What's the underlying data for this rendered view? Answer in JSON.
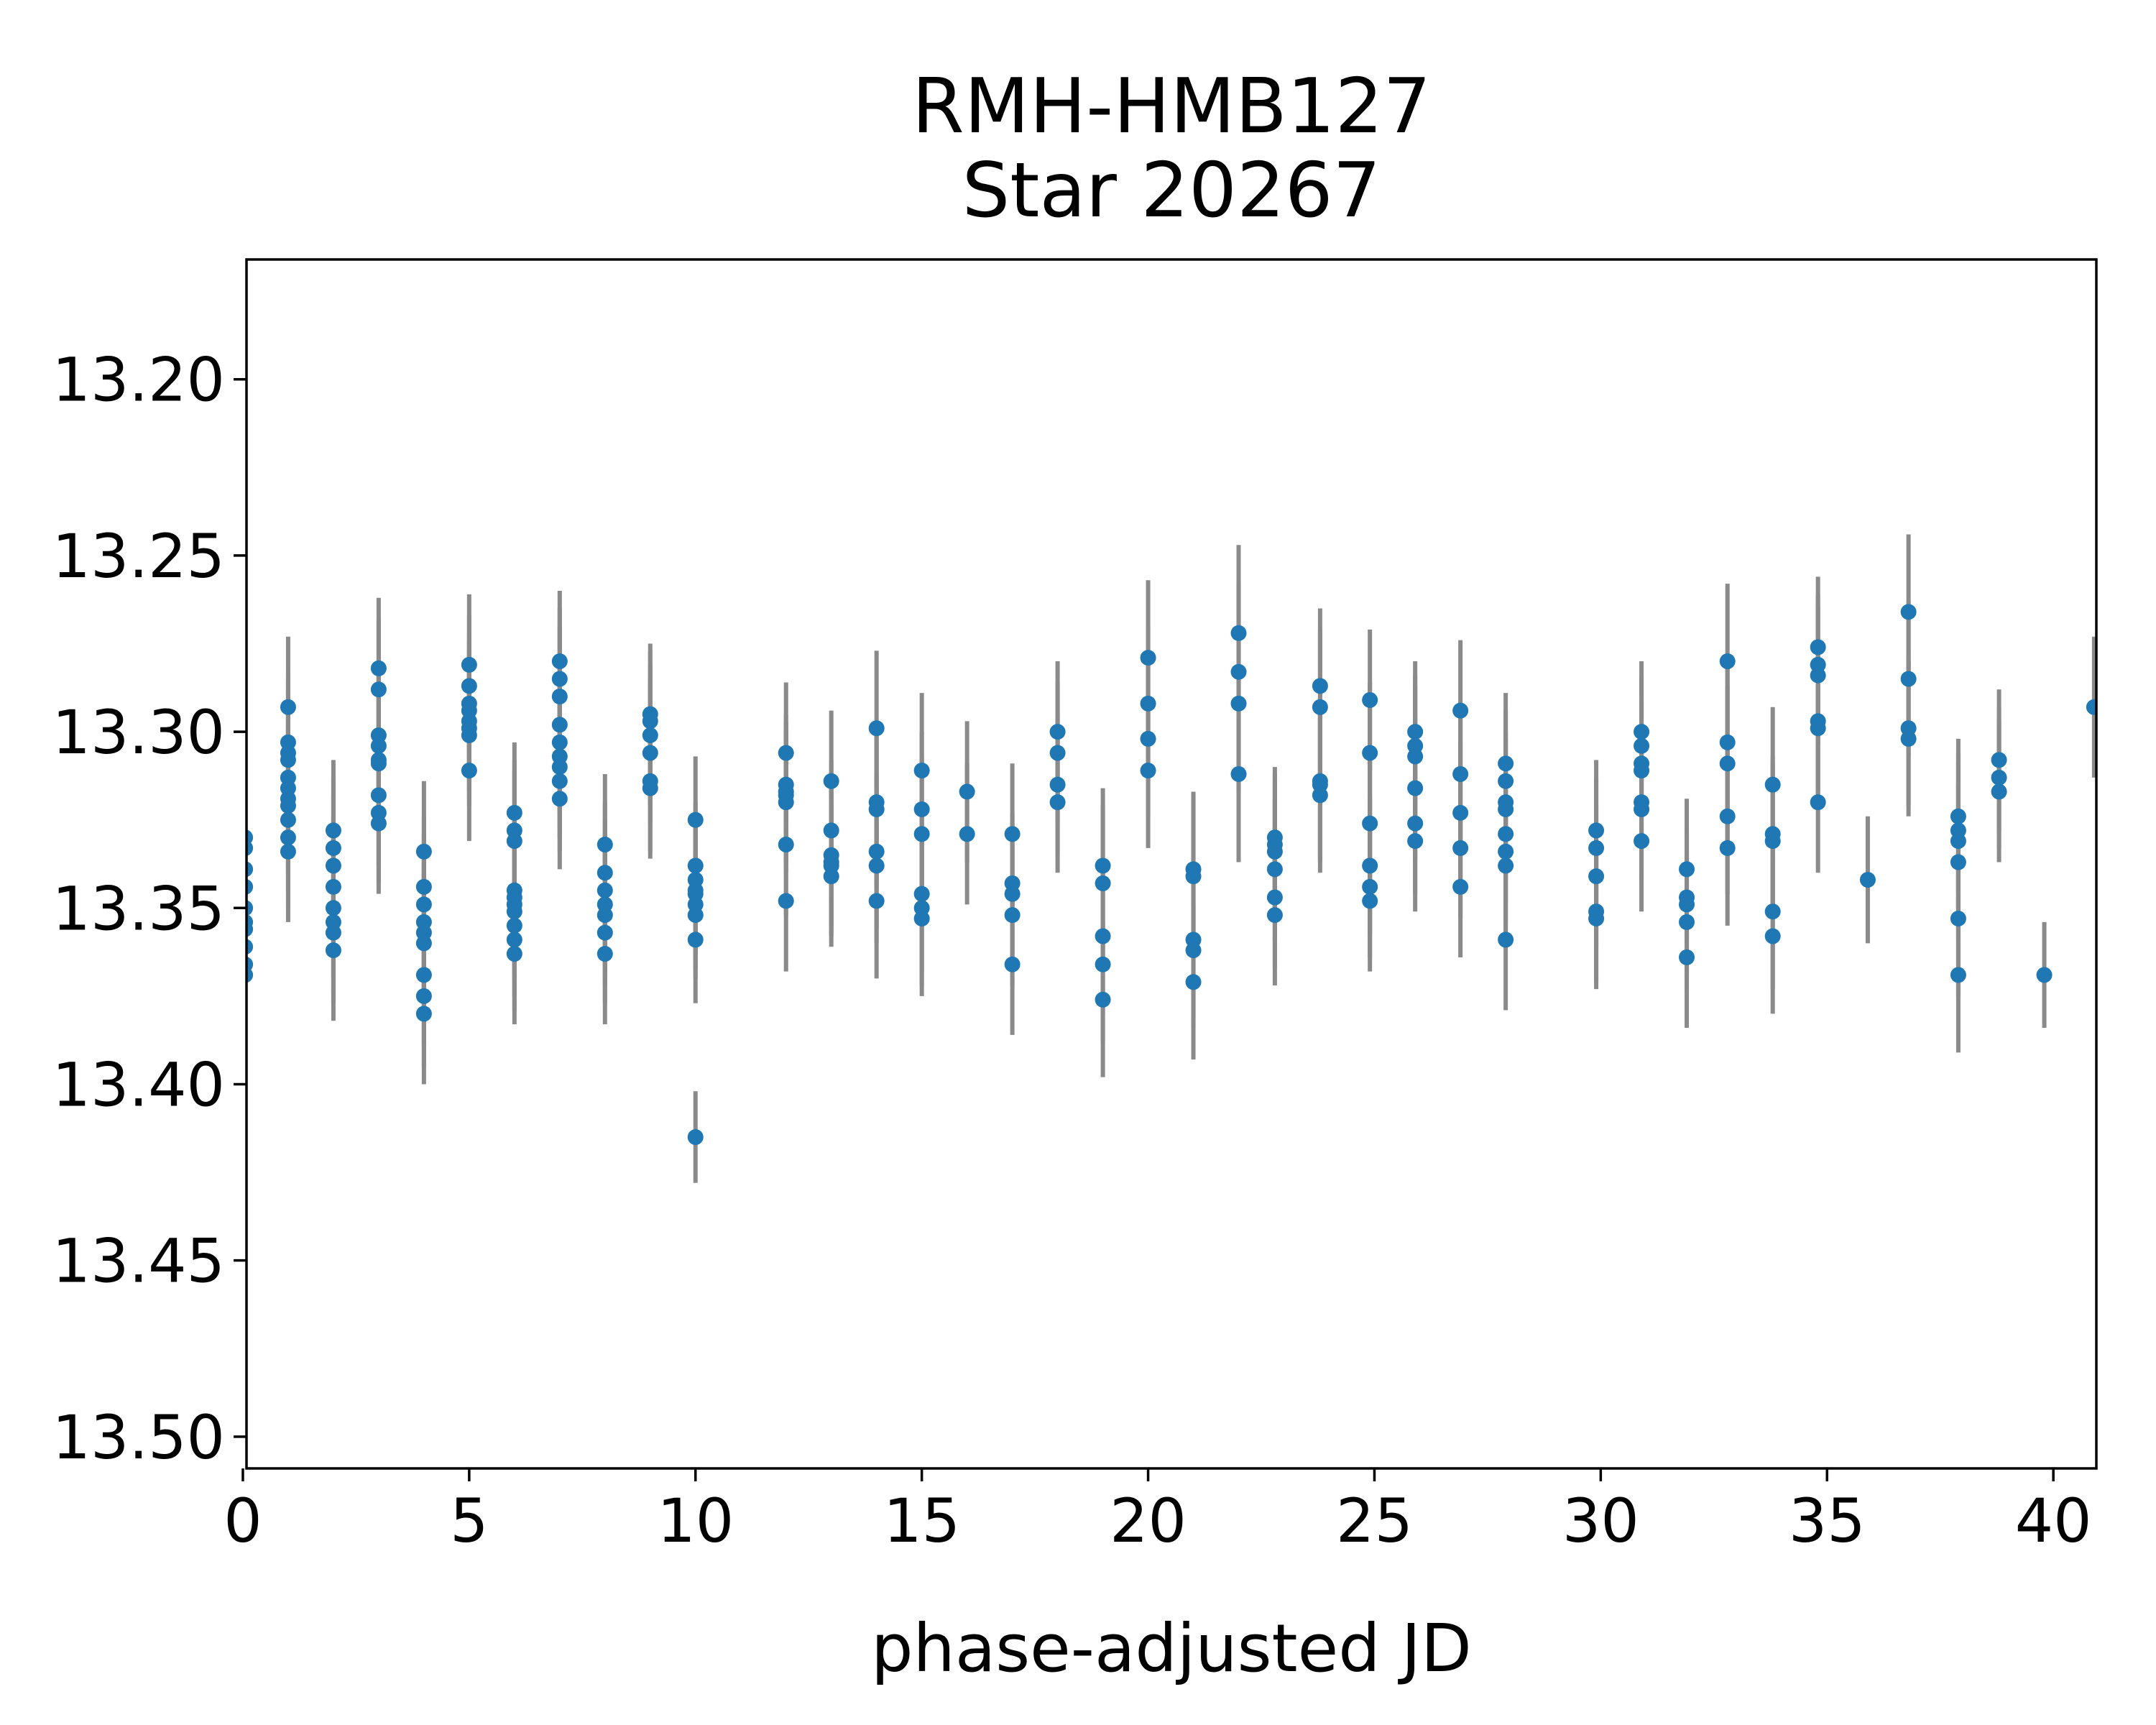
{
  "figure": {
    "title_line1": "RMH-HMB127",
    "title_line2": "Star 20267",
    "xlabel": "phase-adjusted JD",
    "background_color": "#ffffff",
    "text_color": "#000000",
    "spine_color": "#000000"
  },
  "chart_data": {
    "type": "scatter",
    "title": "RMH-HMB127\nStar 20267",
    "xlabel": "phase-adjusted JD",
    "ylabel": "",
    "y_axis_is_magnitude_inverted": true,
    "grid": false,
    "legend": "none",
    "marker_color": "#1f77b4",
    "errorbar_color": "#8a8a8a",
    "xlim": [
      0.08,
      40.95
    ],
    "ylim_top_value": 13.166,
    "ylim_bottom_value": 13.509,
    "xticks": [
      0,
      5,
      10,
      15,
      20,
      25,
      30,
      35,
      40
    ],
    "yticks": [
      {
        "value": 13.2,
        "label": "13.20"
      },
      {
        "value": 13.25,
        "label": "13.25"
      },
      {
        "value": 13.3,
        "label": "13.30"
      },
      {
        "value": 13.35,
        "label": "13.35"
      },
      {
        "value": 13.4,
        "label": "13.40"
      },
      {
        "value": 13.45,
        "label": "13.45"
      },
      {
        "value": 13.5,
        "label": "13.50"
      }
    ],
    "clusters": [
      {
        "x": 0.05,
        "err": 0.02,
        "mags": [
          13.33,
          13.333,
          13.339,
          13.344,
          13.35,
          13.354,
          13.356,
          13.361,
          13.366,
          13.369
        ]
      },
      {
        "x": 1.0,
        "err": 0.02,
        "mags": [
          13.293,
          13.303,
          13.306,
          13.308,
          13.313,
          13.316,
          13.319,
          13.321,
          13.325,
          13.33,
          13.334
        ]
      },
      {
        "x": 2.0,
        "err": 0.02,
        "mags": [
          13.328,
          13.333,
          13.338,
          13.344,
          13.35,
          13.354,
          13.357,
          13.362
        ]
      },
      {
        "x": 3.0,
        "err": 0.02,
        "mags": [
          13.282,
          13.288,
          13.301,
          13.304,
          13.308,
          13.309,
          13.318,
          13.323,
          13.326
        ]
      },
      {
        "x": 4.0,
        "err": 0.02,
        "mags": [
          13.334,
          13.344,
          13.349,
          13.354,
          13.357,
          13.36,
          13.369,
          13.375,
          13.38
        ]
      },
      {
        "x": 5.0,
        "err": 0.02,
        "mags": [
          13.281,
          13.287,
          13.292,
          13.294,
          13.297,
          13.299,
          13.301,
          13.311
        ]
      },
      {
        "x": 6.0,
        "err": 0.02,
        "mags": [
          13.323,
          13.328,
          13.331,
          13.345,
          13.347,
          13.349,
          13.351,
          13.355,
          13.359,
          13.363
        ]
      },
      {
        "x": 7.0,
        "err": 0.02,
        "mags": [
          13.28,
          13.285,
          13.29,
          13.298,
          13.303,
          13.307,
          13.31,
          13.314,
          13.319
        ]
      },
      {
        "x": 8.0,
        "err": 0.02,
        "mags": [
          13.332,
          13.34,
          13.345,
          13.349,
          13.352,
          13.357,
          13.363
        ]
      },
      {
        "x": 9.0,
        "err": 0.02,
        "mags": [
          13.295,
          13.297,
          13.301,
          13.306,
          13.314,
          13.316
        ]
      },
      {
        "x": 10.0,
        "err": 0.018,
        "mags": [
          13.325,
          13.338,
          13.342,
          13.345,
          13.346,
          13.349,
          13.352,
          13.359
        ]
      },
      {
        "x": 10.0,
        "err": 0.013,
        "mags": [
          13.415
        ]
      },
      {
        "x": 12.0,
        "err": 0.02,
        "mags": [
          13.306,
          13.315,
          13.317,
          13.318,
          13.32,
          13.332,
          13.348
        ]
      },
      {
        "x": 13.0,
        "err": 0.02,
        "mags": [
          13.314,
          13.328,
          13.335,
          13.337,
          13.338,
          13.341
        ]
      },
      {
        "x": 14.0,
        "err": 0.022,
        "mags": [
          13.299,
          13.32,
          13.322,
          13.334,
          13.338,
          13.348
        ]
      },
      {
        "x": 15.0,
        "err": 0.022,
        "mags": [
          13.311,
          13.322,
          13.329,
          13.346,
          13.35,
          13.353
        ]
      },
      {
        "x": 16.0,
        "err": 0.02,
        "mags": [
          13.317,
          13.329
        ]
      },
      {
        "x": 17.0,
        "err": 0.02,
        "mags": [
          13.329,
          13.343,
          13.346,
          13.352,
          13.366
        ]
      },
      {
        "x": 18.0,
        "err": 0.02,
        "mags": [
          13.3,
          13.306,
          13.315,
          13.32
        ]
      },
      {
        "x": 19.0,
        "err": 0.022,
        "mags": [
          13.338,
          13.343,
          13.358,
          13.366,
          13.376
        ]
      },
      {
        "x": 20.0,
        "err": 0.022,
        "mags": [
          13.279,
          13.292,
          13.302,
          13.311
        ]
      },
      {
        "x": 21.0,
        "err": 0.022,
        "mags": [
          13.339,
          13.341,
          13.359,
          13.362,
          13.371
        ]
      },
      {
        "x": 22.0,
        "err": 0.025,
        "mags": [
          13.272,
          13.283,
          13.292,
          13.312
        ]
      },
      {
        "x": 22.8,
        "err": 0.02,
        "mags": [
          13.33,
          13.332,
          13.334,
          13.339,
          13.347,
          13.352
        ]
      },
      {
        "x": 23.8,
        "err": 0.022,
        "mags": [
          13.287,
          13.293,
          13.314,
          13.315,
          13.318
        ]
      },
      {
        "x": 24.9,
        "err": 0.02,
        "mags": [
          13.291,
          13.306,
          13.326,
          13.338,
          13.344,
          13.348
        ]
      },
      {
        "x": 25.9,
        "err": 0.02,
        "mags": [
          13.3,
          13.304,
          13.307,
          13.316,
          13.326,
          13.331
        ]
      },
      {
        "x": 26.9,
        "err": 0.02,
        "mags": [
          13.294,
          13.312,
          13.323,
          13.333,
          13.344
        ]
      },
      {
        "x": 27.9,
        "err": 0.02,
        "mags": [
          13.309,
          13.314,
          13.32,
          13.322,
          13.329,
          13.334,
          13.338,
          13.359
        ]
      },
      {
        "x": 29.9,
        "err": 0.02,
        "mags": [
          13.328,
          13.333,
          13.341,
          13.351,
          13.353
        ]
      },
      {
        "x": 30.9,
        "err": 0.02,
        "mags": [
          13.3,
          13.304,
          13.309,
          13.311,
          13.32,
          13.322,
          13.331
        ]
      },
      {
        "x": 31.9,
        "err": 0.02,
        "mags": [
          13.339,
          13.347,
          13.349,
          13.354,
          13.364
        ]
      },
      {
        "x": 32.8,
        "err": 0.022,
        "mags": [
          13.28,
          13.303,
          13.309,
          13.324,
          13.333
        ]
      },
      {
        "x": 33.8,
        "err": 0.022,
        "mags": [
          13.315,
          13.329,
          13.331,
          13.351,
          13.358
        ]
      },
      {
        "x": 34.8,
        "err": 0.02,
        "mags": [
          13.276,
          13.281,
          13.284,
          13.297,
          13.299,
          13.32
        ]
      },
      {
        "x": 35.9,
        "err": 0.018,
        "mags": [
          13.342
        ]
      },
      {
        "x": 36.8,
        "err": 0.022,
        "mags": [
          13.266,
          13.285,
          13.299,
          13.302
        ]
      },
      {
        "x": 37.9,
        "err": 0.022,
        "mags": [
          13.324,
          13.328,
          13.331,
          13.337,
          13.353,
          13.369
        ]
      },
      {
        "x": 38.8,
        "err": 0.02,
        "mags": [
          13.308,
          13.313,
          13.317
        ]
      },
      {
        "x": 39.8,
        "err": 0.015,
        "mags": [
          13.369
        ]
      },
      {
        "x": 40.9,
        "err": 0.02,
        "mags": [
          13.293
        ]
      }
    ]
  }
}
